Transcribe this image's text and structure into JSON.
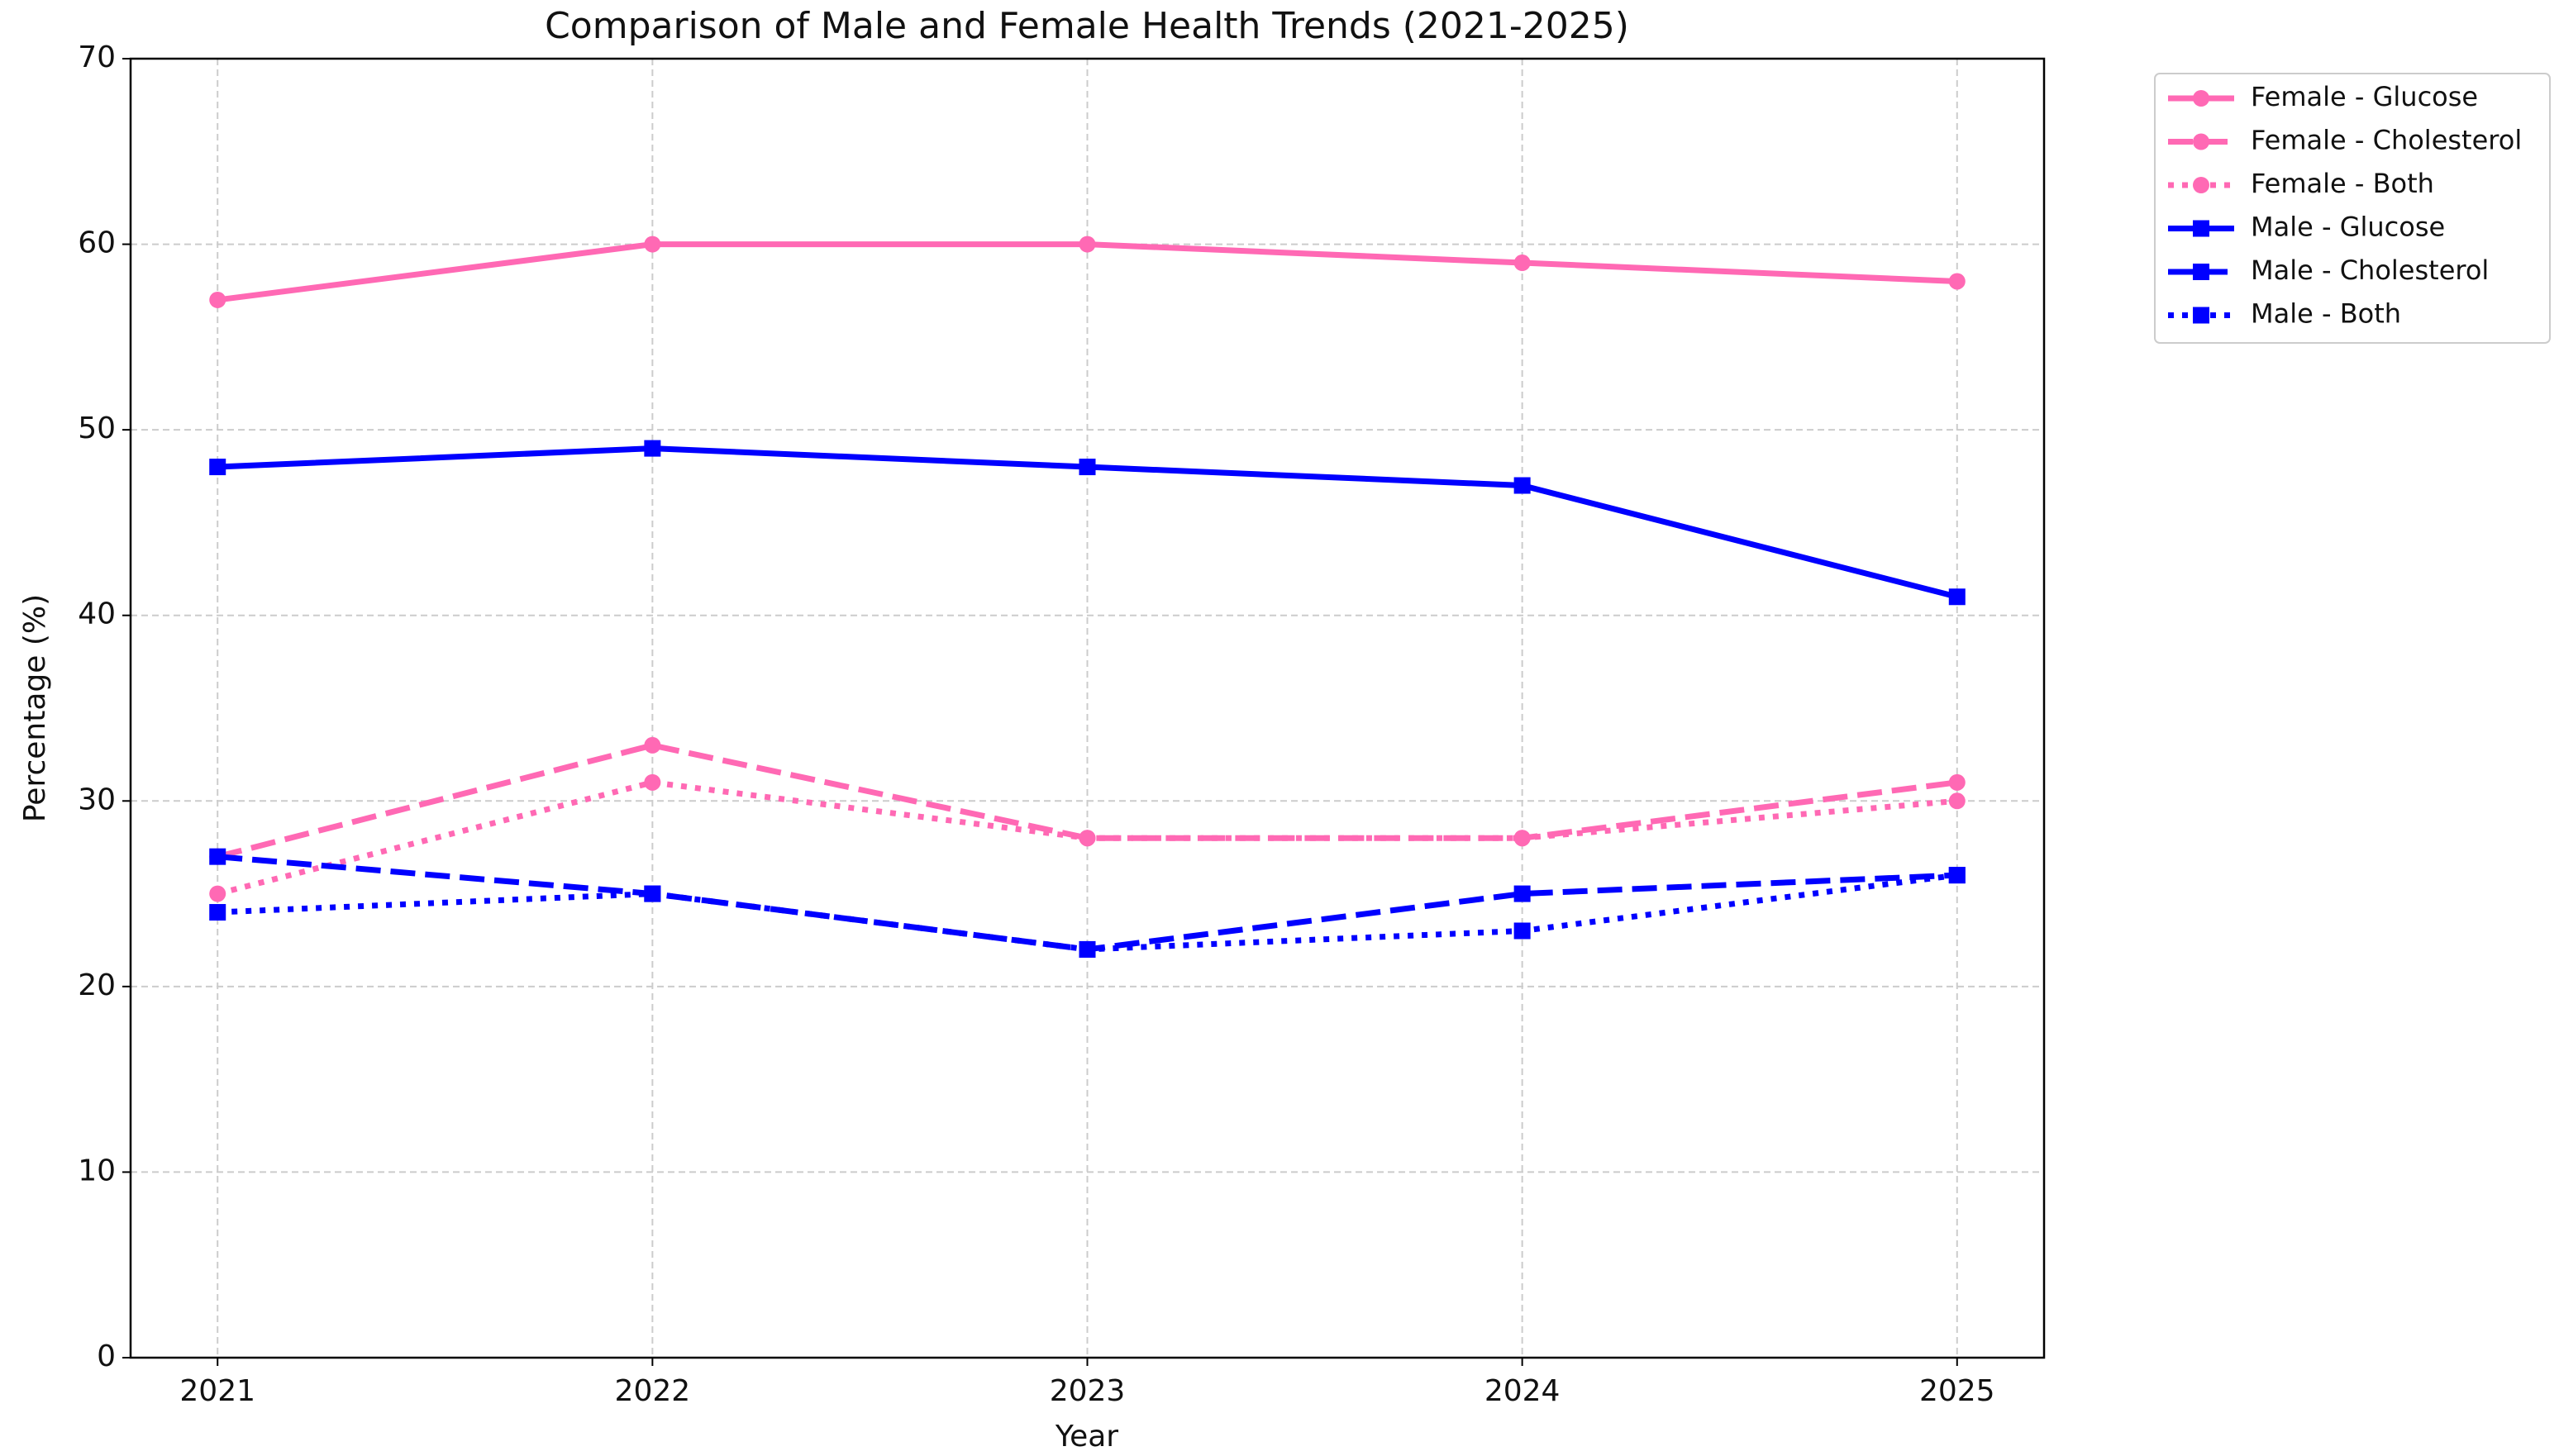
{
  "chart_data": {
    "type": "line",
    "title": "Comparison of Male and Female Health Trends (2021-2025)",
    "x_label": "Year",
    "y_label": "Percentage (%)",
    "x": [
      2021,
      2022,
      2023,
      2024,
      2025
    ],
    "xlim": [
      2020.8,
      2025.2
    ],
    "xticks": [
      2021,
      2022,
      2023,
      2024,
      2025
    ],
    "ylim": [
      0,
      70
    ],
    "yticks": [
      0,
      10,
      20,
      30,
      40,
      50,
      60,
      70
    ],
    "grid": true,
    "legend": "outside-upper-right",
    "series": [
      {
        "name": "Female - Glucose",
        "color": "#ff69b4",
        "linestyle": "solid",
        "marker": "circle",
        "values": [
          57,
          60,
          60,
          59,
          58
        ]
      },
      {
        "name": "Female - Cholesterol",
        "color": "#ff69b4",
        "linestyle": "dashed",
        "marker": "circle",
        "values": [
          27,
          33,
          28,
          28,
          31
        ]
      },
      {
        "name": "Female - Both",
        "color": "#ff69b4",
        "linestyle": "dotted",
        "marker": "circle",
        "values": [
          25,
          31,
          28,
          28,
          30
        ]
      },
      {
        "name": "Male - Glucose",
        "color": "#0000ff",
        "linestyle": "solid",
        "marker": "square",
        "values": [
          48,
          49,
          48,
          47,
          41
        ]
      },
      {
        "name": "Male - Cholesterol",
        "color": "#0000ff",
        "linestyle": "dashed",
        "marker": "square",
        "values": [
          27,
          25,
          22,
          25,
          26
        ]
      },
      {
        "name": "Male - Both",
        "color": "#0000ff",
        "linestyle": "dotted",
        "marker": "square",
        "values": [
          24,
          25,
          22,
          23,
          26
        ]
      }
    ]
  }
}
